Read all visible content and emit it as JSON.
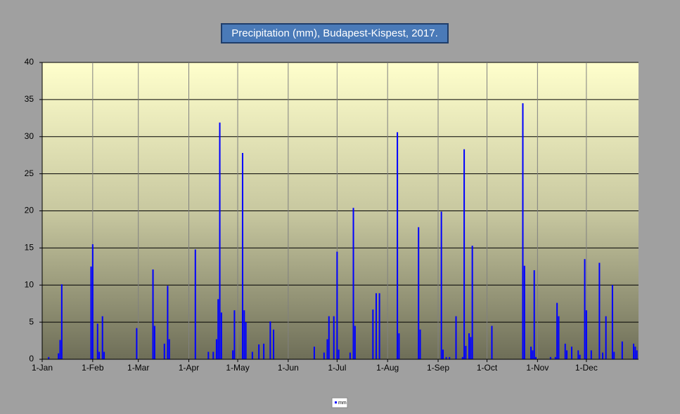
{
  "chart_data": {
    "type": "bar",
    "title": "Precipitation (mm), Budapest-Kispest, 2017.",
    "x": [
      4,
      10,
      11,
      12,
      30,
      31,
      34,
      35,
      37,
      38,
      58,
      68,
      69,
      75,
      77,
      78,
      94,
      102,
      105,
      107,
      108,
      109,
      110,
      117,
      118,
      123,
      124,
      125,
      129,
      133,
      136,
      140,
      142,
      167,
      173,
      175,
      176,
      179,
      181,
      182,
      189,
      191,
      192,
      203,
      205,
      207,
      218,
      219,
      231,
      232,
      245,
      246,
      248,
      250,
      254,
      258,
      259,
      260,
      262,
      263,
      264,
      276,
      295,
      296,
      300,
      301,
      302,
      303,
      312,
      315,
      316,
      317,
      321,
      322,
      325,
      329,
      330,
      333,
      334,
      337,
      342,
      344,
      346,
      350,
      351,
      356,
      363,
      364,
      365
    ],
    "series": [
      {
        "name": "mm",
        "color": "#0000ff",
        "values": [
          0.3,
          0.8,
          2.6,
          10.1,
          12.5,
          15.5,
          4.8,
          1.0,
          5.8,
          1.0,
          4.2,
          12.1,
          4.5,
          2.1,
          9.9,
          2.7,
          14.8,
          1.0,
          1.0,
          2.7,
          8.1,
          31.9,
          6.3,
          1.2,
          6.6,
          27.8,
          6.6,
          5.0,
          1.0,
          2.0,
          2.1,
          5.1,
          4.0,
          1.7,
          0.9,
          2.7,
          5.8,
          5.8,
          14.5,
          1.3,
          0.9,
          20.4,
          4.5,
          6.7,
          8.9,
          8.9,
          30.6,
          3.5,
          17.8,
          4.0,
          19.9,
          1.3,
          0.3,
          0.3,
          5.8,
          0.3,
          28.3,
          1.8,
          3.5,
          3.0,
          15.3,
          4.5,
          34.5,
          12.6,
          1.7,
          1.2,
          12.0,
          0.3,
          0.3,
          0.3,
          7.6,
          5.8,
          2.1,
          1.2,
          1.7,
          1.2,
          0.6,
          13.5,
          6.6,
          1.2,
          13.0,
          0.9,
          5.8,
          10.0,
          1.0,
          2.4,
          2.1,
          1.7,
          1.2
        ]
      }
    ],
    "xlim": [
      0,
      366
    ],
    "xticks": [
      {
        "value": 0,
        "label": "1-Jan"
      },
      {
        "value": 31,
        "label": "1-Feb"
      },
      {
        "value": 59,
        "label": "1-Mar"
      },
      {
        "value": 90,
        "label": "1-Apr"
      },
      {
        "value": 120,
        "label": "1-May"
      },
      {
        "value": 151,
        "label": "1-Jun"
      },
      {
        "value": 181,
        "label": "1-Jul"
      },
      {
        "value": 212,
        "label": "1-Aug"
      },
      {
        "value": 243,
        "label": "1-Sep"
      },
      {
        "value": 273,
        "label": "1-Oct"
      },
      {
        "value": 304,
        "label": "1-Nov"
      },
      {
        "value": 334,
        "label": "1-Dec"
      }
    ],
    "ylim": [
      0,
      40
    ],
    "yticks": [
      0,
      5,
      10,
      15,
      20,
      25,
      30,
      35,
      40
    ],
    "grid": true
  }
}
